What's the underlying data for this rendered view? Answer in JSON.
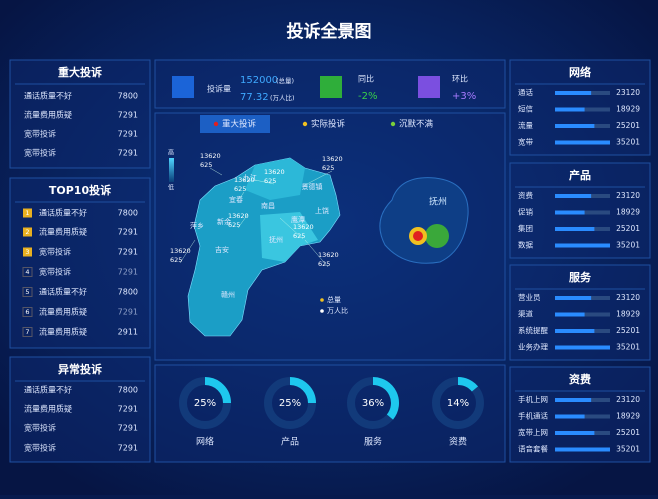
{
  "title": "投诉全景图",
  "major": {
    "title": "重大投诉",
    "rows": [
      [
        "通话质量不好",
        7800
      ],
      [
        "流量费用质疑",
        7291
      ],
      [
        "宽带投诉",
        7291
      ],
      [
        "宽带投诉",
        7291
      ]
    ]
  },
  "top10": {
    "title": "TOP10投诉",
    "rows": [
      [
        1,
        "通话质量不好",
        7800
      ],
      [
        2,
        "流量费用质疑",
        7291
      ],
      [
        3,
        "宽带投诉",
        7291
      ],
      [
        4,
        "宽带投诉",
        7291
      ],
      [
        5,
        "通话质量不好",
        7800
      ],
      [
        6,
        "流量费用质疑",
        7291
      ],
      [
        7,
        "流量费用质疑",
        2911
      ]
    ]
  },
  "abnormal": {
    "title": "异常投诉",
    "rows": [
      [
        "通话质量不好",
        7800
      ],
      [
        "流量费用质疑",
        7291
      ],
      [
        "宽带投诉",
        7291
      ],
      [
        "宽带投诉",
        7291
      ]
    ]
  },
  "stats": {
    "volume": {
      "label": "投诉量",
      "total": 152000,
      "total_unit": "(总量)",
      "ratio": 77.32,
      "ratio_unit": "(万人比)"
    },
    "yoy": {
      "label": "同比",
      "value": "-2%"
    },
    "mom": {
      "label": "环比",
      "value": "+3%"
    }
  },
  "tabs": [
    "重大投诉",
    "实际投诉",
    "沉默不满"
  ],
  "map": {
    "scale": [
      "高",
      "低"
    ],
    "regions": [
      "九江",
      "宜春",
      "新余",
      "萍乡",
      "南昌",
      "景德镇",
      "上饶",
      "鹰潭",
      "抚州",
      "吉安",
      "赣州"
    ],
    "callouts": [
      [
        13620,
        625
      ],
      [
        13620,
        625
      ],
      [
        13620,
        625
      ],
      [
        13620,
        625
      ],
      [
        13620,
        625
      ],
      [
        13620,
        625
      ],
      [
        13620,
        625
      ],
      [
        13620,
        625
      ]
    ],
    "legend": [
      "总量",
      "万人比"
    ],
    "detail": "抚州"
  },
  "donuts": [
    {
      "value": {
        "value": 25,
        "label": "25%"
      },
      "name": "网络"
    },
    {
      "value": {
        "value": 25,
        "label": "25%"
      },
      "name": "产品"
    },
    {
      "value": {
        "value": 36,
        "label": "36%"
      },
      "name": "服务"
    },
    {
      "value": {
        "value": 14,
        "label": "14%"
      },
      "name": "资费"
    }
  ],
  "right": [
    {
      "title": "网络",
      "rows": [
        [
          "通话",
          23120
        ],
        [
          "短信",
          18929
        ],
        [
          "流量",
          25201
        ],
        [
          "宽带",
          35201
        ]
      ]
    },
    {
      "title": "产品",
      "rows": [
        [
          "资费",
          23120
        ],
        [
          "促销",
          18929
        ],
        [
          "集团",
          25201
        ],
        [
          "数据",
          35201
        ]
      ]
    },
    {
      "title": "服务",
      "rows": [
        [
          "营业员",
          23120
        ],
        [
          "渠道",
          18929
        ],
        [
          "系统提醒",
          25201
        ],
        [
          "业务办理",
          35201
        ]
      ]
    },
    {
      "title": "资费",
      "rows": [
        [
          "手机上网",
          23120
        ],
        [
          "手机通话",
          18929
        ],
        [
          "宽带上网",
          25201
        ],
        [
          "语音套餐",
          35201
        ]
      ]
    }
  ]
}
